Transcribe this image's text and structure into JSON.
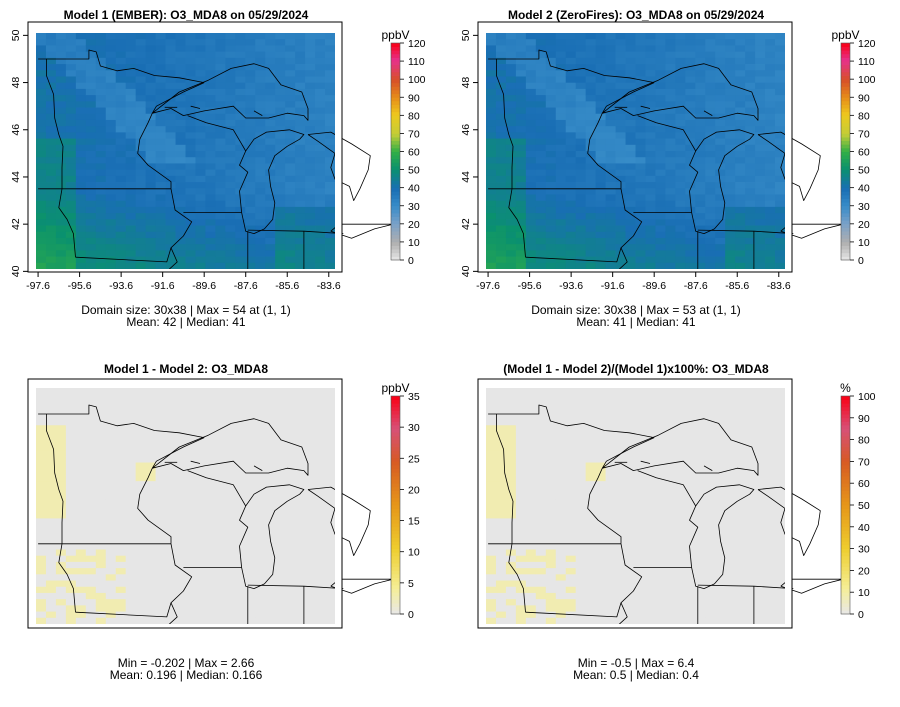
{
  "chart_data": [
    {
      "type": "heatmap",
      "title": "Model 1 (EMBER): O3_MDA8 on 05/29/2024",
      "xlabel": "",
      "ylabel": "",
      "x_ticks": [
        "-97.6",
        "-95.6",
        "-93.6",
        "-91.6",
        "-89.6",
        "-87.6",
        "-85.6",
        "-83.6"
      ],
      "y_ticks": [
        "40",
        "42",
        "44",
        "46",
        "48",
        "50"
      ],
      "xlim": [
        -97.6,
        -83.6
      ],
      "ylim": [
        40,
        50
      ],
      "grid_size": [
        30,
        38
      ],
      "colorbar": {
        "unit": "ppbV",
        "ticks": [
          "0",
          "10",
          "20",
          "30",
          "40",
          "50",
          "60",
          "70",
          "80",
          "90",
          "100",
          "110",
          "120"
        ],
        "range": [
          0,
          120
        ]
      },
      "stats": {
        "line1": "Domain size: 30x38 | Max = 54 at (1, 1)",
        "line2": "Mean: 42 |  Median: 41"
      },
      "typical_values": {
        "west_south": 48,
        "central": 40,
        "north_band": 37,
        "lakes": 38
      }
    },
    {
      "type": "heatmap",
      "title": "Model 2 (ZeroFires): O3_MDA8 on 05/29/2024",
      "xlabel": "",
      "ylabel": "",
      "x_ticks": [
        "-97.6",
        "-95.6",
        "-93.6",
        "-91.6",
        "-89.6",
        "-87.6",
        "-85.6",
        "-83.6"
      ],
      "y_ticks": [
        "40",
        "42",
        "44",
        "46",
        "48",
        "50"
      ],
      "xlim": [
        -97.6,
        -83.6
      ],
      "ylim": [
        40,
        50
      ],
      "grid_size": [
        30,
        38
      ],
      "colorbar": {
        "unit": "ppbV",
        "ticks": [
          "0",
          "10",
          "20",
          "30",
          "40",
          "50",
          "60",
          "70",
          "80",
          "90",
          "100",
          "110",
          "120"
        ],
        "range": [
          0,
          120
        ]
      },
      "stats": {
        "line1": "Domain size: 30x38 | Max = 53 at (1, 1)",
        "line2": "Mean: 41 |  Median: 41"
      },
      "typical_values": {
        "west_south": 47,
        "central": 40,
        "north_band": 36,
        "lakes": 38
      }
    },
    {
      "type": "heatmap",
      "title": "Model 1 - Model 2: O3_MDA8",
      "xlabel": "",
      "ylabel": "",
      "colorbar": {
        "unit": "ppbV",
        "ticks": [
          "0",
          "5",
          "10",
          "15",
          "20",
          "25",
          "30",
          "35"
        ],
        "range": [
          0,
          35
        ]
      },
      "stats": {
        "line1": "Min = -0.202 | Max = 2.66",
        "line2": "Mean: 0.196 |  Median: 0.166"
      }
    },
    {
      "type": "heatmap",
      "title": "(Model 1 - Model 2)/(Model 1)x100%: O3_MDA8",
      "xlabel": "",
      "ylabel": "",
      "colorbar": {
        "unit": "%",
        "ticks": [
          "0",
          "10",
          "20",
          "30",
          "40",
          "50",
          "60",
          "70",
          "80",
          "90",
          "100"
        ],
        "range": [
          0,
          100
        ]
      },
      "stats": {
        "line1": "Min = -0.5 | Max = 6.4",
        "line2": "Mean: 0.5 |  Median: 0.4"
      }
    }
  ]
}
